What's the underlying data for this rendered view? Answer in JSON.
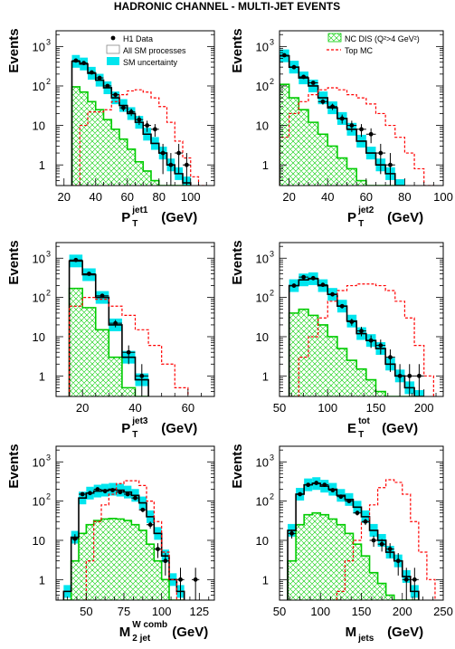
{
  "figure_title": "HADRONIC CHANNEL - MULTI-JET EVENTS",
  "colors": {
    "data": "#000000",
    "sm_total": "#000000",
    "sm_uncertainty": "#00e5ee",
    "nc_dis": "#00cc00",
    "top_mc": "#ff0000"
  },
  "legend_left": [
    {
      "key": "data",
      "label": "H1 Data"
    },
    {
      "key": "sm",
      "label": "All SM processes"
    },
    {
      "key": "unc",
      "label": "SM uncertainty"
    }
  ],
  "legend_right": [
    {
      "key": "nc",
      "label": "NC DIS (Q²>4 GeV²)"
    },
    {
      "key": "top",
      "label": "Top MC"
    }
  ],
  "chart_data": [
    {
      "type": "histogram",
      "ylabel": "Events",
      "yscale": "log",
      "xlabel_main": "P",
      "xlabel_sub": "T",
      "xlabel_sup": "jet1",
      "xlabel_unit": "(GeV)",
      "xlim": [
        15,
        115
      ],
      "ylim": [
        0.3,
        2500
      ],
      "xticks": [
        20,
        40,
        60,
        80,
        100
      ],
      "yticks": [
        1,
        10,
        100,
        1000
      ],
      "ytick_labels": [
        {
          "m": "1",
          "e": ""
        },
        {
          "m": "10",
          "e": ""
        },
        {
          "m": "10",
          "e": "2"
        },
        {
          "m": "10",
          "e": "3"
        }
      ],
      "bin_edges": [
        25,
        30,
        35,
        40,
        45,
        50,
        55,
        60,
        65,
        70,
        75,
        80,
        85,
        90,
        95,
        100
      ],
      "sm": [
        420,
        360,
        210,
        140,
        90,
        50,
        32,
        20,
        12,
        6,
        3.5,
        2,
        1,
        0.6,
        0.35
      ],
      "nc": [
        95,
        70,
        40,
        25,
        14,
        8,
        4.5,
        2.5,
        1.2,
        0.7,
        0.4,
        0.3,
        0.3,
        0.3,
        0.3
      ],
      "top_edges": [
        25,
        30,
        35,
        40,
        45,
        50,
        55,
        60,
        65,
        70,
        75,
        80,
        85,
        90,
        95,
        100,
        105,
        110
      ],
      "top": [
        0.3,
        10,
        22,
        22,
        25,
        40,
        60,
        75,
        80,
        70,
        50,
        30,
        12,
        4,
        1.5,
        0.5,
        0.3
      ],
      "data": [
        440,
        380,
        220,
        160,
        100,
        60,
        28,
        22,
        14,
        10,
        8,
        2,
        1,
        2,
        1
      ],
      "data_x": [
        27.5,
        32.5,
        37.5,
        42.5,
        47.5,
        52.5,
        57.5,
        62.5,
        67.5,
        72.5,
        77.5,
        82.5,
        87.5,
        92.5,
        97.5
      ]
    },
    {
      "type": "histogram",
      "ylabel": "Events",
      "yscale": "log",
      "xlabel_main": "P",
      "xlabel_sub": "T",
      "xlabel_sup": "jet2",
      "xlabel_unit": "(GeV)",
      "xlim": [
        15,
        100
      ],
      "ylim": [
        0.3,
        2500
      ],
      "xticks": [
        20,
        40,
        60,
        80,
        100
      ],
      "yticks": [
        1,
        10,
        100,
        1000
      ],
      "ytick_labels": [
        {
          "m": "1",
          "e": ""
        },
        {
          "m": "10",
          "e": ""
        },
        {
          "m": "10",
          "e": "2"
        },
        {
          "m": "10",
          "e": "3"
        }
      ],
      "bin_edges": [
        15,
        20,
        25,
        30,
        35,
        40,
        45,
        50,
        55,
        60,
        65,
        70,
        75,
        80
      ],
      "sm": [
        580,
        300,
        160,
        100,
        50,
        28,
        15,
        8,
        4,
        2,
        1,
        0.6,
        0.3
      ],
      "nc": [
        110,
        50,
        25,
        12,
        6,
        3,
        1.5,
        0.8,
        0.4,
        0.3,
        0.3,
        0.3,
        0.3
      ],
      "top_edges": [
        15,
        20,
        25,
        30,
        35,
        40,
        45,
        50,
        55,
        60,
        65,
        70,
        75,
        80,
        85,
        90,
        95
      ],
      "top": [
        5,
        20,
        40,
        60,
        80,
        90,
        80,
        60,
        50,
        35,
        20,
        10,
        5,
        2,
        0.8,
        0.3
      ],
      "data": [
        600,
        300,
        170,
        120,
        40,
        30,
        15,
        10,
        8,
        6,
        2,
        1,
        0.3
      ],
      "data_x": [
        17.5,
        22.5,
        27.5,
        32.5,
        37.5,
        42.5,
        47.5,
        52.5,
        57.5,
        62.5,
        67.5,
        72.5,
        77.5
      ]
    },
    {
      "type": "histogram",
      "ylabel": "Events",
      "yscale": "log",
      "xlabel_main": "P",
      "xlabel_sub": "T",
      "xlabel_sup": "jet3",
      "xlabel_unit": "(GeV)",
      "xlim": [
        10,
        70
      ],
      "ylim": [
        0.3,
        2500
      ],
      "xticks": [
        20,
        40,
        60
      ],
      "yticks": [
        1,
        10,
        100,
        1000
      ],
      "ytick_labels": [
        {
          "m": "1",
          "e": ""
        },
        {
          "m": "10",
          "e": ""
        },
        {
          "m": "10",
          "e": "2"
        },
        {
          "m": "10",
          "e": "3"
        }
      ],
      "bin_edges": [
        15,
        20,
        25,
        30,
        35,
        40,
        45
      ],
      "sm": [
        850,
        380,
        100,
        20,
        3,
        0.8
      ],
      "nc": [
        170,
        55,
        15,
        3,
        0.5,
        0.3
      ],
      "top_edges": [
        15,
        20,
        25,
        30,
        35,
        40,
        45,
        50,
        55,
        60
      ],
      "top": [
        60,
        100,
        90,
        60,
        35,
        15,
        6,
        2,
        0.5
      ],
      "data": [
        900,
        400,
        110,
        22,
        4,
        1
      ],
      "data_x": [
        17.5,
        22.5,
        27.5,
        32.5,
        37.5,
        42.5
      ]
    },
    {
      "type": "histogram",
      "ylabel": "Events",
      "yscale": "log",
      "xlabel_main": "E",
      "xlabel_sub": "T",
      "xlabel_sup": "tot",
      "xlabel_unit": "(GeV)",
      "xlim": [
        50,
        220
      ],
      "ylim": [
        0.3,
        2500
      ],
      "xticks": [
        50,
        100,
        150,
        200
      ],
      "yticks": [
        1,
        10,
        100,
        1000
      ],
      "ytick_labels": [
        {
          "m": "1",
          "e": ""
        },
        {
          "m": "10",
          "e": ""
        },
        {
          "m": "10",
          "e": "2"
        },
        {
          "m": "10",
          "e": "3"
        }
      ],
      "bin_edges": [
        60,
        70,
        80,
        90,
        100,
        110,
        120,
        130,
        140,
        150,
        160,
        170,
        180,
        190,
        200
      ],
      "sm": [
        200,
        280,
        300,
        200,
        120,
        60,
        25,
        12,
        8,
        5,
        2,
        1,
        0.5,
        0.3
      ],
      "nc": [
        40,
        50,
        35,
        20,
        10,
        5,
        2.5,
        1.5,
        0.8,
        0.4,
        0.3,
        0.3,
        0.3,
        0.3
      ],
      "top_edges": [
        60,
        70,
        80,
        90,
        100,
        110,
        120,
        130,
        140,
        150,
        160,
        170,
        180,
        190,
        200,
        210
      ],
      "top": [
        0.3,
        3,
        10,
        30,
        80,
        150,
        200,
        220,
        220,
        200,
        150,
        80,
        30,
        6,
        1
      ],
      "data": [
        200,
        330,
        310,
        210,
        120,
        60,
        24,
        14,
        8,
        6,
        3,
        1,
        1,
        1
      ],
      "data_x": [
        65,
        75,
        85,
        95,
        105,
        115,
        125,
        135,
        145,
        155,
        165,
        175,
        185,
        195
      ]
    },
    {
      "type": "histogram",
      "ylabel": "Events",
      "yscale": "log",
      "xlabel_main": "M",
      "xlabel_sub": "2 jet",
      "xlabel_sup": "W comb",
      "xlabel_unit": "(GeV)",
      "xlim": [
        30,
        135
      ],
      "ylim": [
        0.3,
        2500
      ],
      "xticks": [
        50,
        75,
        100,
        125
      ],
      "yticks": [
        1,
        10,
        100,
        1000
      ],
      "ytick_labels": [
        {
          "m": "1",
          "e": ""
        },
        {
          "m": "10",
          "e": ""
        },
        {
          "m": "10",
          "e": "2"
        },
        {
          "m": "10",
          "e": "3"
        }
      ],
      "bin_edges": [
        35,
        40,
        45,
        50,
        55,
        60,
        65,
        70,
        75,
        80,
        85,
        90,
        95,
        100,
        105,
        110,
        115
      ],
      "sm": [
        0.5,
        12,
        120,
        160,
        180,
        190,
        200,
        190,
        170,
        140,
        90,
        40,
        15,
        4,
        1,
        0.5
      ],
      "nc": [
        0.3,
        3,
        15,
        25,
        32,
        35,
        36,
        35,
        32,
        25,
        18,
        8,
        3,
        1,
        0.3,
        0.3
      ],
      "top_edges": [
        50,
        55,
        60,
        65,
        70,
        75,
        80,
        85,
        90,
        95,
        100,
        105,
        110,
        115
      ],
      "top": [
        3,
        30,
        80,
        150,
        280,
        330,
        330,
        250,
        100,
        30,
        5,
        1,
        0.3
      ],
      "data": [
        0.3,
        11,
        150,
        160,
        200,
        180,
        190,
        170,
        150,
        120,
        60,
        25,
        6,
        3,
        1,
        1
      ],
      "data_x": [
        37.5,
        42.5,
        47.5,
        52.5,
        57.5,
        62.5,
        67.5,
        72.5,
        77.5,
        82.5,
        87.5,
        92.5,
        97.5,
        102.5,
        112.5,
        122.5
      ]
    },
    {
      "type": "histogram",
      "ylabel": "Events",
      "yscale": "log",
      "xlabel_main": "M",
      "xlabel_sub": "jets",
      "xlabel_sup": "",
      "xlabel_unit": "(GeV)",
      "xlim": [
        50,
        250
      ],
      "ylim": [
        0.3,
        2500
      ],
      "xticks": [
        50,
        100,
        150,
        200,
        250
      ],
      "yticks": [
        1,
        10,
        100,
        1000
      ],
      "ytick_labels": [
        {
          "m": "1",
          "e": ""
        },
        {
          "m": "10",
          "e": ""
        },
        {
          "m": "10",
          "e": "2"
        },
        {
          "m": "10",
          "e": "3"
        }
      ],
      "bin_edges": [
        60,
        70,
        80,
        90,
        100,
        110,
        120,
        130,
        140,
        150,
        160,
        170,
        180,
        190,
        200,
        210,
        220
      ],
      "sm": [
        18,
        150,
        260,
        280,
        240,
        200,
        140,
        110,
        70,
        40,
        18,
        10,
        5,
        3,
        1.2,
        0.5
      ],
      "nc": [
        3,
        25,
        45,
        50,
        45,
        35,
        25,
        15,
        8,
        4,
        1.5,
        0.8,
        0.4,
        0.3,
        0.3,
        0.3
      ],
      "top_edges": [
        120,
        130,
        140,
        150,
        160,
        170,
        180,
        190,
        200,
        210,
        220,
        230,
        240
      ],
      "top": [
        0.5,
        3,
        10,
        30,
        80,
        220,
        350,
        300,
        150,
        30,
        5,
        1
      ],
      "data": [
        15,
        150,
        260,
        290,
        260,
        190,
        130,
        100,
        50,
        30,
        10,
        8,
        6,
        3,
        1,
        1
      ],
      "data_x": [
        65,
        75,
        85,
        95,
        105,
        115,
        125,
        135,
        145,
        155,
        165,
        175,
        185,
        195,
        205,
        215
      ]
    }
  ]
}
